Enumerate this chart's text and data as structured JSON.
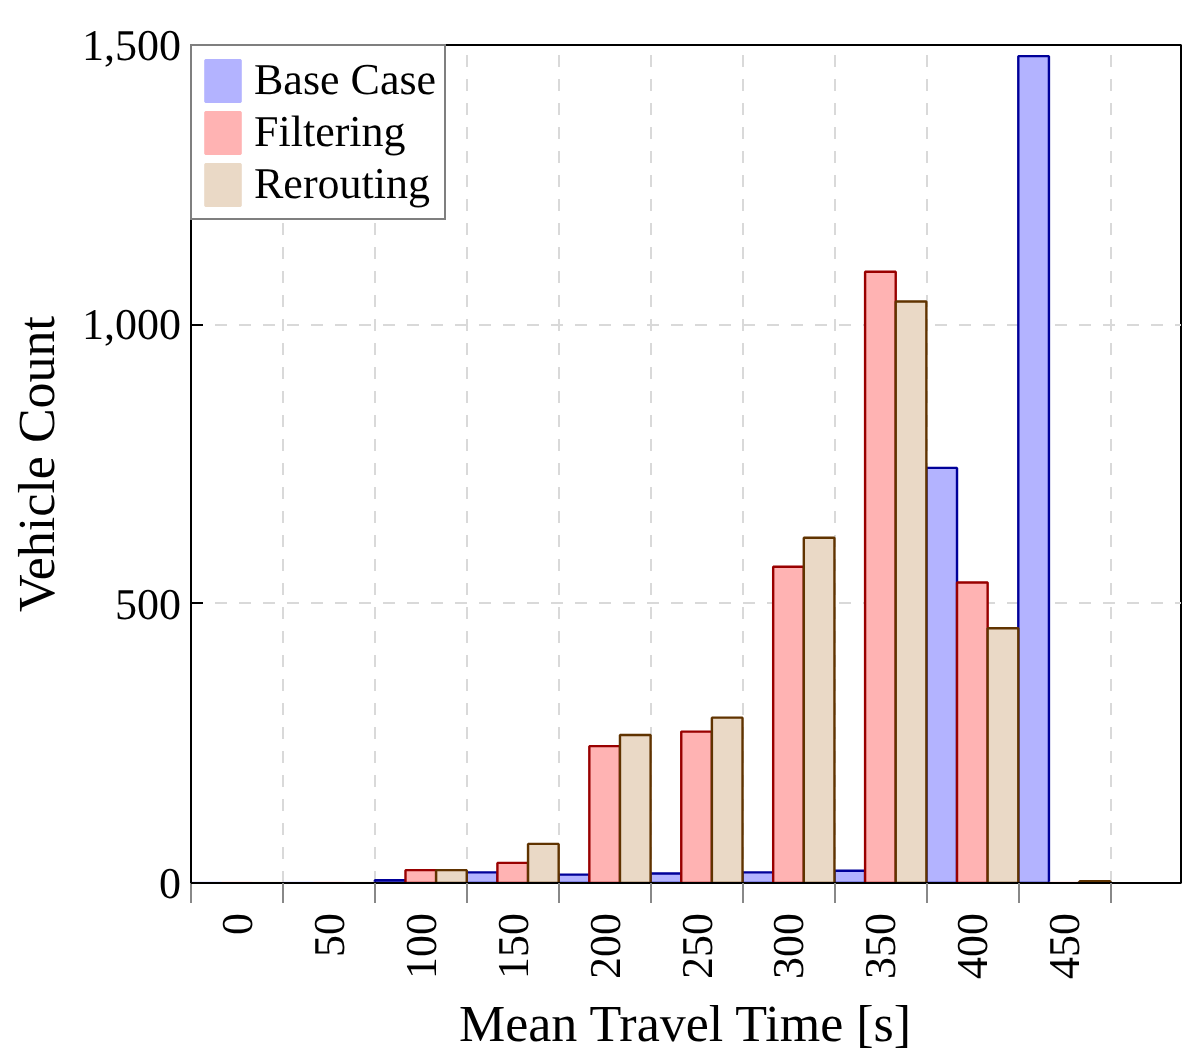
{
  "chart_data": {
    "type": "bar",
    "xlabel": "Mean Travel Time [s]",
    "ylabel": "Vehicle Count",
    "categories": [
      "0",
      "50",
      "100",
      "150",
      "200",
      "250",
      "300",
      "350",
      "400",
      "450"
    ],
    "series": [
      {
        "name": "Base Case",
        "color": "#b3b3ff",
        "values": [
          0,
          0,
          5,
          19,
          15,
          17,
          19,
          22,
          743,
          1480
        ]
      },
      {
        "name": "Filtering",
        "color": "#ffb3b3",
        "values": [
          0,
          0,
          23,
          36,
          245,
          271,
          566,
          1094,
          538,
          0
        ]
      },
      {
        "name": "Rerouting",
        "color": "#ead9c6",
        "values": [
          0,
          0,
          23,
          70,
          265,
          296,
          618,
          1041,
          456,
          3
        ]
      }
    ],
    "ylim": [
      0,
      1500
    ],
    "yticks": [
      0,
      500,
      {
        "value": 1000,
        "label": "1,000"
      },
      {
        "value": 1500,
        "label": "1,500"
      }
    ],
    "grid": true,
    "legend": "top left"
  }
}
